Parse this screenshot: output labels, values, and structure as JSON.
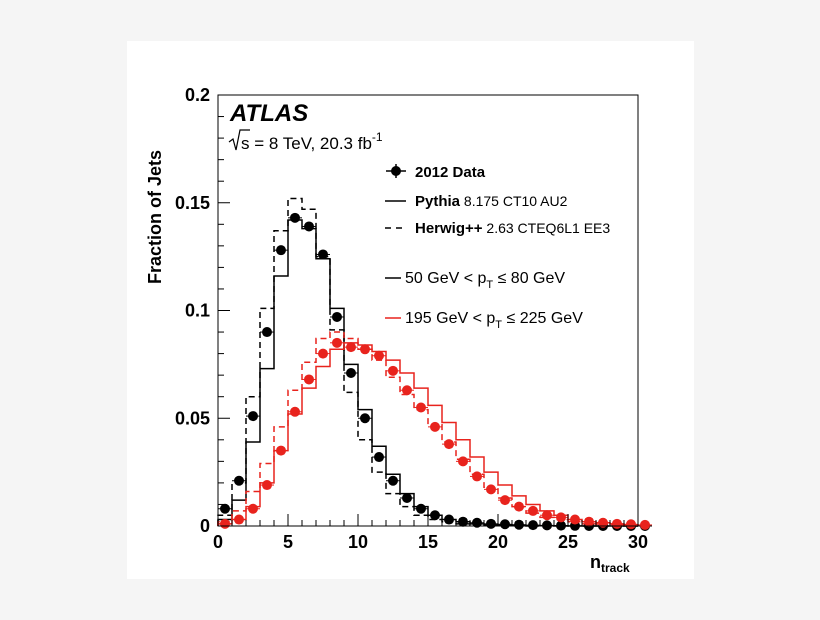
{
  "chart_data": {
    "type": "line",
    "ylabel": "Fraction of Jets",
    "xlabel_main": "n",
    "xlabel_sub": "track",
    "xlim": [
      0,
      30
    ],
    "ylim": [
      0,
      0.2
    ],
    "x_ticks": [
      "0",
      "5",
      "10",
      "15",
      "20",
      "25",
      "30"
    ],
    "y_ticks": [
      "0",
      "0.05",
      "0.1",
      "0.15",
      "0.2"
    ],
    "grid": false,
    "legend_position": "top-right",
    "annotations": {
      "experiment": "ATLAS",
      "energy_prefix": "s",
      "energy_text": " = 8 TeV, 20.3 fb",
      "energy_sup": "-1"
    },
    "legend": {
      "data": {
        "bold": "2012 Data",
        "rest": ""
      },
      "pythia": {
        "bold": "Pythia",
        "rest": " 8.175 CT10 AU2"
      },
      "herwig": {
        "bold": "Herwig++",
        "rest": " 2.63 CTEQ6L1 EE3"
      },
      "low_pt": {
        "pre": "50 GeV < p",
        "sub": "T",
        "post": " ≤ 80 GeV"
      },
      "high_pt": {
        "pre": "195 GeV < p",
        "sub": "T",
        "post": " ≤ 225 GeV"
      }
    },
    "colors": {
      "low_pt": "#000000",
      "high_pt": "#e8231d"
    },
    "series": [
      {
        "name": "2012 Data",
        "pt_bin": "low_pt",
        "style": "points",
        "values": [
          0.008,
          0.021,
          0.051,
          0.09,
          0.128,
          0.143,
          0.139,
          0.126,
          0.097,
          0.071,
          0.05,
          0.032,
          0.021,
          0.013,
          0.008,
          0.005,
          0.003,
          0.002,
          0.0015,
          0.001,
          0.0008,
          0.0006,
          0.0004,
          0.0003,
          0.0002,
          0.0001,
          0,
          0,
          0,
          0,
          0
        ]
      },
      {
        "name": "Pythia",
        "pt_bin": "low_pt",
        "style": "solid",
        "values": [
          0.003,
          0.012,
          0.039,
          0.073,
          0.116,
          0.142,
          0.138,
          0.124,
          0.101,
          0.075,
          0.054,
          0.037,
          0.024,
          0.015,
          0.009,
          0.005,
          0.003,
          0.002,
          0.001,
          0.0008,
          0.0005,
          0.0003,
          0.0002,
          0.0001,
          0.0001,
          0,
          0,
          0,
          0,
          0
        ]
      },
      {
        "name": "Herwig++",
        "pt_bin": "low_pt",
        "style": "dashed",
        "values": [
          0.005,
          0.02,
          0.06,
          0.101,
          0.137,
          0.152,
          0.147,
          0.125,
          0.091,
          0.062,
          0.04,
          0.025,
          0.015,
          0.009,
          0.005,
          0.003,
          0.002,
          0.001,
          0.0006,
          0.0003,
          0.0002,
          0.0001,
          0,
          0,
          0,
          0,
          0,
          0,
          0,
          0
        ]
      },
      {
        "name": "2012 Data",
        "pt_bin": "high_pt",
        "style": "points",
        "values": [
          0.001,
          0.003,
          0.008,
          0.019,
          0.035,
          0.053,
          0.068,
          0.08,
          0.085,
          0.083,
          0.082,
          0.079,
          0.072,
          0.063,
          0.055,
          0.046,
          0.038,
          0.03,
          0.023,
          0.017,
          0.012,
          0.009,
          0.007,
          0.005,
          0.004,
          0.003,
          0.002,
          0.0015,
          0.001,
          0.0008,
          0.0005
        ]
      },
      {
        "name": "Pythia",
        "pt_bin": "high_pt",
        "style": "solid",
        "values": [
          0.001,
          0.003,
          0.009,
          0.02,
          0.035,
          0.052,
          0.064,
          0.074,
          0.082,
          0.085,
          0.084,
          0.081,
          0.077,
          0.071,
          0.064,
          0.056,
          0.048,
          0.04,
          0.032,
          0.025,
          0.019,
          0.014,
          0.01,
          0.007,
          0.005,
          0.003,
          0.002,
          0.0015,
          0.001,
          0.0005
        ]
      },
      {
        "name": "Herwig++",
        "pt_bin": "high_pt",
        "style": "dashed",
        "values": [
          0.002,
          0.007,
          0.016,
          0.029,
          0.046,
          0.063,
          0.076,
          0.087,
          0.09,
          0.087,
          0.082,
          0.077,
          0.069,
          0.061,
          0.054,
          0.047,
          0.039,
          0.031,
          0.024,
          0.018,
          0.013,
          0.009,
          0.006,
          0.004,
          0.003,
          0.002,
          0.001,
          0.0008,
          0.0005,
          0.0003
        ]
      }
    ]
  }
}
